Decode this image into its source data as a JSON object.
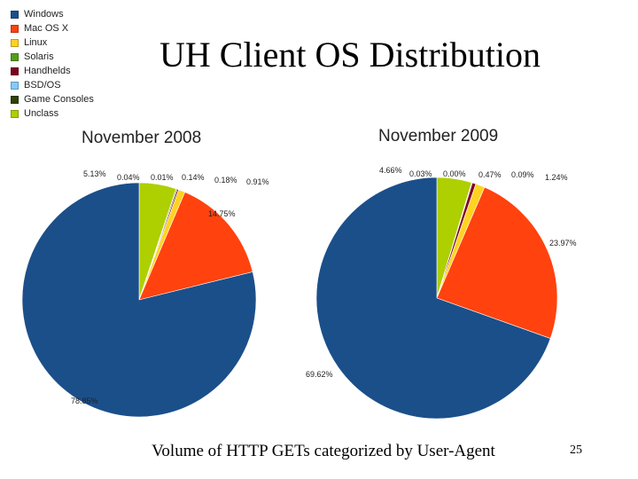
{
  "slide": {
    "title": "UH Client OS Distribution",
    "caption": "Volume of HTTP GETs categorized by User-Agent",
    "page_number": "25"
  },
  "legend": [
    {
      "label": "Windows",
      "color": "#1b4f8a"
    },
    {
      "label": "Mac OS X",
      "color": "#ff420e"
    },
    {
      "label": "Linux",
      "color": "#ffd320"
    },
    {
      "label": "Solaris",
      "color": "#579d1c"
    },
    {
      "label": "Handhelds",
      "color": "#7e0021"
    },
    {
      "label": "BSD/OS",
      "color": "#83caff"
    },
    {
      "label": "Game Consoles",
      "color": "#314004"
    },
    {
      "label": "Unclass",
      "color": "#aecf00"
    }
  ],
  "chart_data": [
    {
      "type": "pie",
      "title": "November 2008",
      "categories": [
        "Windows",
        "Mac OS X",
        "Linux",
        "Solaris",
        "Handhelds",
        "BSD/OS",
        "Game Consoles",
        "Unclass"
      ],
      "values": [
        78.85,
        14.75,
        0.91,
        0.04,
        0.18,
        0.01,
        0.14,
        5.13
      ],
      "labels": [
        "78.85%",
        "14.75%",
        "0.91%",
        "0.04%",
        "0.18%",
        "0.01%",
        "0.14%",
        "5.13%"
      ]
    },
    {
      "type": "pie",
      "title": "November 2009",
      "categories": [
        "Windows",
        "Mac OS X",
        "Linux",
        "Solaris",
        "Handhelds",
        "BSD/OS",
        "Game Consoles",
        "Unclass"
      ],
      "values": [
        69.62,
        23.97,
        1.24,
        0.03,
        0.47,
        0.0,
        0.09,
        4.66
      ],
      "labels": [
        "69.62%",
        "23.97%",
        "1.24%",
        "0.03%",
        "0.47%",
        "0.00%",
        "0.09%",
        "4.66%"
      ]
    }
  ]
}
